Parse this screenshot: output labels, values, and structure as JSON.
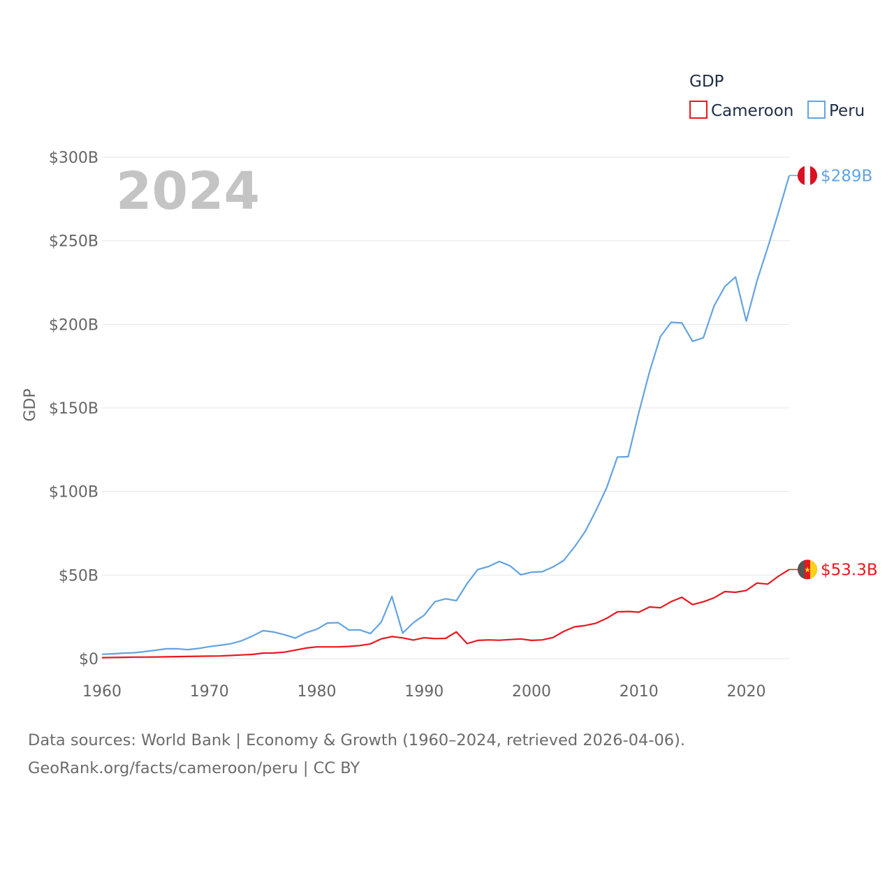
{
  "chart_data": {
    "type": "line",
    "title": "",
    "xlabel": "",
    "ylabel": "GDP",
    "year_label": "2024",
    "xlim": [
      1960,
      2024
    ],
    "ylim": [
      0,
      300
    ],
    "y_unit": "billions USD",
    "x_ticks": [
      1960,
      1970,
      1980,
      1990,
      2000,
      2010,
      2020
    ],
    "y_ticks": [
      {
        "value": 0,
        "label": "$0"
      },
      {
        "value": 50,
        "label": "$50B"
      },
      {
        "value": 100,
        "label": "$100B"
      },
      {
        "value": 150,
        "label": "$150B"
      },
      {
        "value": 200,
        "label": "$200B"
      },
      {
        "value": 250,
        "label": "$250B"
      },
      {
        "value": 300,
        "label": "$300B"
      }
    ],
    "legend": {
      "title": "GDP",
      "placement": "top-right"
    },
    "x": [
      1960,
      1961,
      1962,
      1963,
      1964,
      1965,
      1966,
      1967,
      1968,
      1969,
      1970,
      1971,
      1972,
      1973,
      1974,
      1975,
      1976,
      1977,
      1978,
      1979,
      1980,
      1981,
      1982,
      1983,
      1984,
      1985,
      1986,
      1987,
      1988,
      1989,
      1990,
      1991,
      1992,
      1993,
      1994,
      1995,
      1996,
      1997,
      1998,
      1999,
      2000,
      2001,
      2002,
      2003,
      2004,
      2005,
      2006,
      2007,
      2008,
      2009,
      2010,
      2011,
      2012,
      2013,
      2014,
      2015,
      2016,
      2017,
      2018,
      2019,
      2020,
      2021,
      2022,
      2023,
      2024
    ],
    "series": [
      {
        "name": "Cameroon",
        "color": "#e8171f",
        "end_label": "$53.3B",
        "flag": "cameroon-flag",
        "values": [
          0.6,
          0.7,
          0.8,
          0.9,
          0.9,
          1.0,
          1.1,
          1.2,
          1.3,
          1.4,
          1.5,
          1.6,
          1.9,
          2.2,
          2.5,
          3.3,
          3.4,
          3.9,
          5.1,
          6.3,
          7.0,
          7.0,
          7.0,
          7.3,
          7.8,
          8.8,
          11.8,
          13.2,
          12.4,
          11.1,
          12.5,
          12.0,
          12.1,
          16.0,
          9.0,
          10.9,
          11.2,
          11.0,
          11.4,
          11.8,
          10.9,
          11.2,
          12.6,
          16.3,
          19.0,
          19.8,
          21.2,
          24.1,
          28.0,
          28.2,
          27.8,
          30.9,
          30.4,
          34.1,
          36.7,
          32.3,
          34.0,
          36.4,
          40.1,
          39.7,
          40.8,
          45.2,
          44.6,
          49.3,
          53.3
        ]
      },
      {
        "name": "Peru",
        "color": "#62a3e3",
        "end_label": "$289B",
        "flag": "peru-flag",
        "values": [
          2.6,
          2.9,
          3.3,
          3.5,
          4.2,
          5.0,
          5.9,
          5.9,
          5.4,
          6.1,
          7.2,
          8.0,
          8.9,
          10.7,
          13.5,
          16.7,
          15.9,
          14.3,
          12.3,
          15.5,
          17.6,
          21.3,
          21.5,
          17.1,
          17.2,
          15.0,
          21.8,
          37.2,
          15.3,
          21.5,
          26.0,
          34.0,
          35.8,
          34.7,
          44.9,
          53.3,
          55.1,
          58.1,
          55.5,
          50.2,
          51.7,
          52.0,
          54.8,
          58.7,
          66.8,
          76.1,
          88.6,
          102.2,
          120.6,
          120.8,
          147.5,
          171.8,
          192.6,
          201.2,
          200.8,
          189.8,
          191.9,
          211.0,
          222.6,
          228.3,
          201.9,
          226.1,
          246.0,
          267.0,
          289.0
        ]
      }
    ]
  },
  "footer": {
    "line1": "Data sources: World Bank | Economy & Growth (1960–2024, retrieved 2026-04-06).",
    "line2": "GeoRank.org/facts/cameroon/peru | CC BY"
  }
}
